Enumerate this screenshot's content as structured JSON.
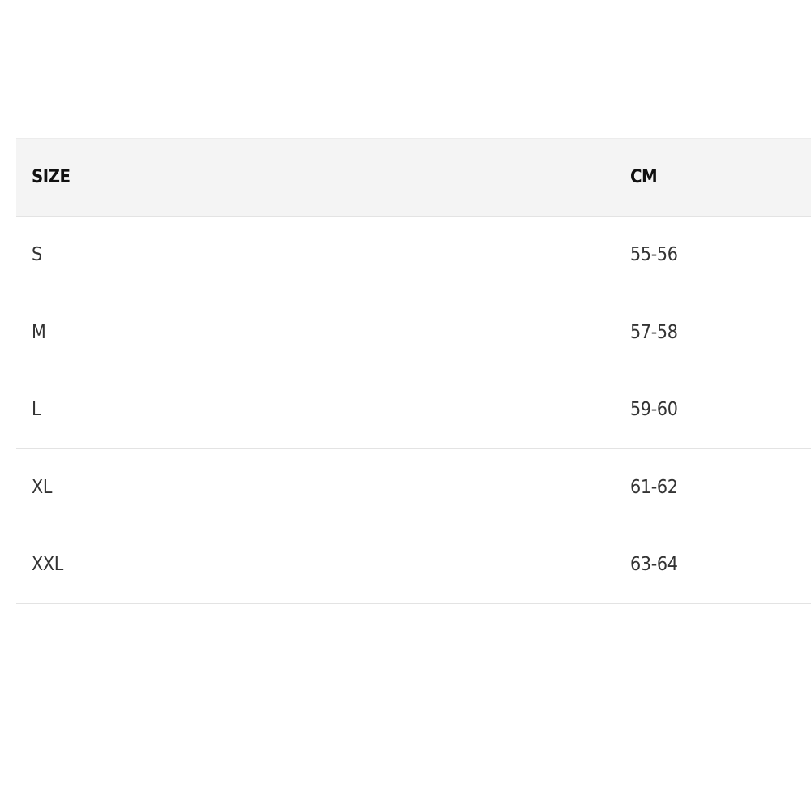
{
  "table": {
    "headers": [
      "SIZE",
      "CM"
    ],
    "rows": [
      [
        "S",
        "55-56"
      ],
      [
        "M",
        "57-58"
      ],
      [
        "L",
        "59-60"
      ],
      [
        "XL",
        "61-62"
      ],
      [
        "XXL",
        "63-64"
      ]
    ]
  }
}
